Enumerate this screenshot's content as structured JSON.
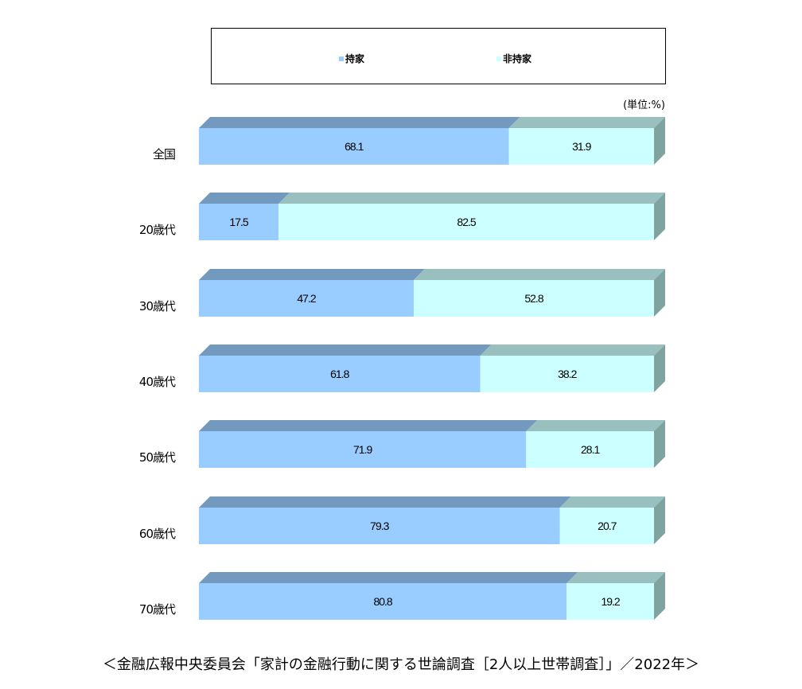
{
  "legend": {
    "items": [
      {
        "label": "持家",
        "color": "#99ccff"
      },
      {
        "label": "非持家",
        "color": "#ccffff"
      }
    ]
  },
  "unit_label": "(単位:%)",
  "caption": "＜金融広報中央委員会「家計の金融行動に関する世論調査［2人以上世帯調査］」／2022年＞",
  "colors": {
    "own_front": "#99ccff",
    "own_top": "#7399bf",
    "non_front": "#ccffff",
    "non_top": "#99bfbf",
    "side": "#7fa39e"
  },
  "rows": [
    {
      "label": "全国",
      "own": "68.1",
      "non": "31.9"
    },
    {
      "label": "20歳代",
      "own": "17.5",
      "non": "82.5"
    },
    {
      "label": "30歳代",
      "own": "47.2",
      "non": "52.8"
    },
    {
      "label": "40歳代",
      "own": "61.8",
      "non": "38.2"
    },
    {
      "label": "50歳代",
      "own": "71.9",
      "non": "28.1"
    },
    {
      "label": "60歳代",
      "own": "79.3",
      "non": "20.7"
    },
    {
      "label": "70歳代",
      "own": "80.8",
      "non": "19.2"
    }
  ],
  "chart_data": {
    "type": "bar",
    "orientation": "horizontal",
    "stacked": true,
    "percent_stacked": true,
    "title": "",
    "unit": "%",
    "categories": [
      "全国",
      "20歳代",
      "30歳代",
      "40歳代",
      "50歳代",
      "60歳代",
      "70歳代"
    ],
    "series": [
      {
        "name": "持家",
        "values": [
          68.1,
          17.5,
          47.2,
          61.8,
          71.9,
          79.3,
          80.8
        ],
        "color": "#99ccff"
      },
      {
        "name": "非持家",
        "values": [
          31.9,
          82.5,
          52.8,
          38.2,
          28.1,
          20.7,
          19.2
        ],
        "color": "#ccffff"
      }
    ],
    "xlim": [
      0,
      100
    ],
    "legend_position": "top",
    "grid": false,
    "source": "＜金融広報中央委員会「家計の金融行動に関する世論調査［2人以上世帯調査］」／2022年＞"
  }
}
